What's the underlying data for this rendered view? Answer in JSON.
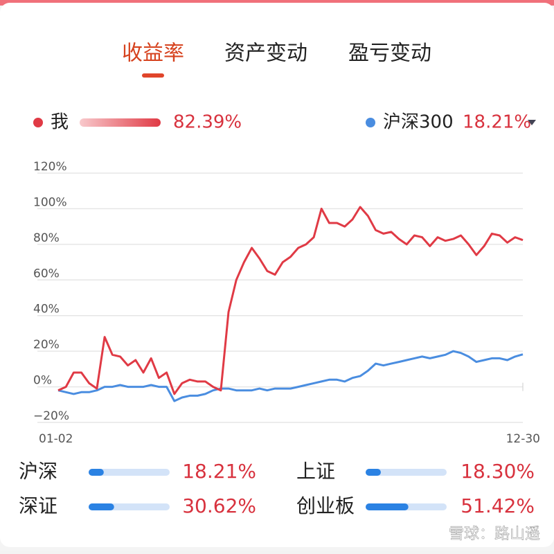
{
  "tabs": [
    "收益率",
    "资产变动",
    "盈亏变动"
  ],
  "legend": [
    {
      "name": "我",
      "return": "82.39%"
    },
    {
      "name": "沪深300",
      "return": "18.21%"
    }
  ],
  "chart_data": {
    "type": "line",
    "categories": [
      "01-02",
      null,
      null,
      null,
      null,
      null,
      null,
      null,
      null,
      null,
      null,
      null,
      null,
      null,
      null,
      null,
      null,
      null,
      null,
      null,
      null,
      null,
      null,
      null,
      null,
      null,
      null,
      null,
      null,
      null,
      null,
      null,
      null,
      null,
      null,
      null,
      null,
      null,
      null,
      null,
      null,
      null,
      null,
      null,
      null,
      null,
      null,
      null,
      null,
      null,
      null,
      null,
      null,
      null,
      null,
      null,
      null,
      null,
      null,
      null,
      "12-30"
    ],
    "series": [
      {
        "name": "我",
        "color": "#e03a45",
        "values": [
          -2,
          0,
          8,
          8,
          2,
          -1,
          28,
          18,
          17,
          12,
          15,
          8,
          16,
          5,
          8,
          -4,
          2,
          4,
          3,
          3,
          0,
          -2,
          42,
          60,
          70,
          78,
          72,
          65,
          63,
          70,
          73,
          78,
          80,
          84,
          100,
          92,
          92,
          90,
          94,
          101,
          96,
          88,
          86,
          87,
          83,
          80,
          85,
          84,
          79,
          84,
          82,
          83,
          85,
          80,
          74,
          79,
          86,
          85,
          81,
          84,
          82.39
        ]
      },
      {
        "name": "沪深300",
        "color": "#4a8de0",
        "values": [
          -2,
          -3,
          -4,
          -3,
          -3,
          -2,
          0,
          0,
          1,
          0,
          0,
          0,
          1,
          0,
          0,
          -8,
          -6,
          -5,
          -5,
          -4,
          -2,
          -1,
          -1,
          -2,
          -2,
          -2,
          -1,
          -2,
          -1,
          -1,
          -1,
          0,
          1,
          2,
          3,
          4,
          4,
          3,
          5,
          6,
          9,
          13,
          12,
          13,
          14,
          15,
          16,
          17,
          16,
          17,
          18,
          20,
          19,
          17,
          14,
          15,
          16,
          16,
          15,
          17,
          18.21
        ]
      }
    ],
    "ylim": [
      -20,
      120
    ],
    "yticks": [
      {
        "value": -20,
        "label": "−20%"
      },
      {
        "value": 0,
        "label": "0%"
      },
      {
        "value": 20,
        "label": "20%"
      },
      {
        "value": 40,
        "label": "40%"
      },
      {
        "value": 60,
        "label": "60%"
      },
      {
        "value": 80,
        "label": "80%"
      },
      {
        "value": 100,
        "label": "100%"
      },
      {
        "value": 120,
        "label": "120%"
      }
    ],
    "grid": true
  },
  "indices": [
    {
      "name": "沪深",
      "value": {
        "value": 18.21,
        "label": "18.21%"
      }
    },
    {
      "name": "上证",
      "value": {
        "value": 18.3,
        "label": "18.30%"
      }
    },
    {
      "name": "深证",
      "value": {
        "value": 30.62,
        "label": "30.62%"
      }
    },
    {
      "name": "创业板",
      "value": {
        "value": 51.42,
        "label": "51.42%"
      }
    }
  ],
  "watermark": "雪球：路山遥"
}
